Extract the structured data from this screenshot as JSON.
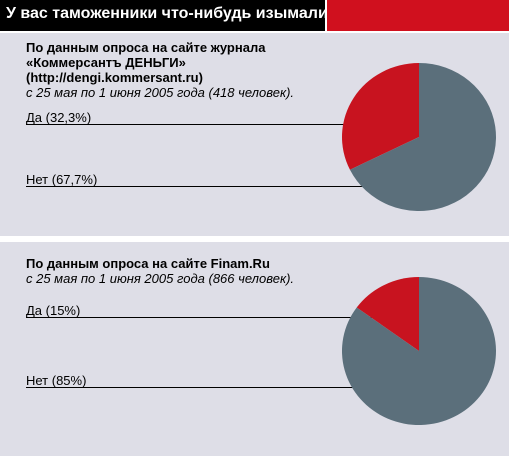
{
  "header": {
    "title": "У вас таможенники что-нибудь изымали?",
    "accent_color": "#d0101e"
  },
  "chart_data": [
    {
      "type": "pie",
      "source_line1": "По данным опроса на сайте журнала",
      "source_line2": "«Коммерсантъ ДЕНЬГИ»",
      "source_line3": "(http://dengi.kommersant.ru)",
      "period": "с 25 мая по 1 июня 2005 года (418 человек).",
      "slices": [
        {
          "label": "Да (32,3%)",
          "value": 32.3,
          "color": "#c8131f"
        },
        {
          "label": "Нет (67,7%)",
          "value": 67.7,
          "color": "#5b6f7b"
        }
      ]
    },
    {
      "type": "pie",
      "source_line1": "По данным опроса на сайте Finam.Ru",
      "period": "с 25 мая по 1 июня 2005 года (866 человек).",
      "slices": [
        {
          "label": "Да (15%)",
          "value": 15,
          "color": "#c8131f"
        },
        {
          "label": "Нет (85%)",
          "value": 85,
          "color": "#5b6f7b"
        }
      ]
    }
  ]
}
